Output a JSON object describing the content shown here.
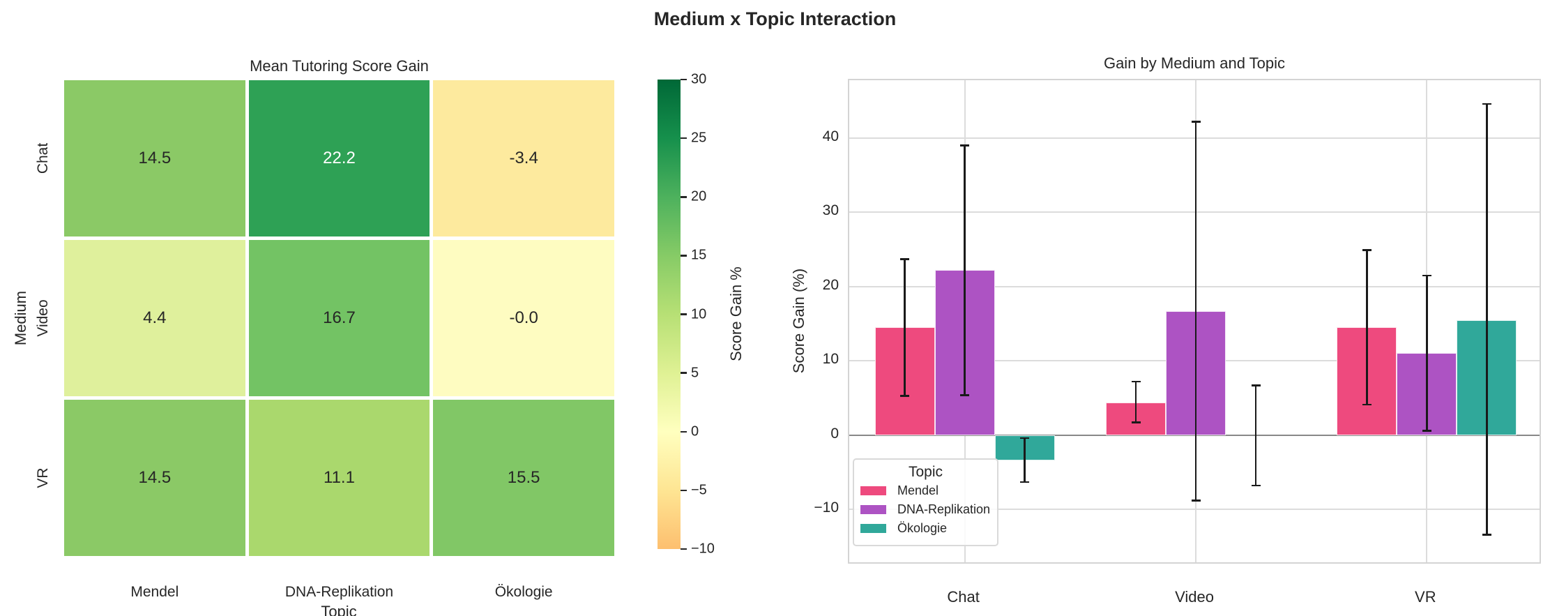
{
  "figure_title": "Medium x Topic Interaction",
  "chart_data": [
    {
      "type": "heatmap",
      "title": "Mean Tutoring Score Gain",
      "xlabel": "Topic",
      "ylabel": "Medium",
      "columns": [
        "Mendel",
        "DNA-Replikation",
        "Ökologie"
      ],
      "rows": [
        "Chat",
        "Video",
        "VR"
      ],
      "values": [
        [
          14.5,
          22.2,
          -3.4
        ],
        [
          4.4,
          16.7,
          -0.0
        ],
        [
          14.5,
          11.1,
          15.5
        ]
      ],
      "cell_labels": [
        [
          "14.5",
          "22.2",
          "-3.4"
        ],
        [
          "4.4",
          "16.7",
          "-0.0"
        ],
        [
          "14.5",
          "11.1",
          "15.5"
        ]
      ],
      "cell_colors": [
        [
          "#8bc966",
          "#2ea155",
          "#fdea9e"
        ],
        [
          "#dff09c",
          "#73c364",
          "#fefcc1"
        ],
        [
          "#8bc966",
          "#aad86d",
          "#81c766"
        ]
      ],
      "cell_text_colors": [
        [
          "#262626",
          "#ffffff",
          "#262626"
        ],
        [
          "#262626",
          "#262626",
          "#262626"
        ],
        [
          "#262626",
          "#262626",
          "#262626"
        ]
      ],
      "colorbar": {
        "label": "Score Gain %",
        "ticks": [
          30,
          25,
          20,
          15,
          10,
          5,
          0,
          -5,
          -10
        ],
        "range": [
          -10,
          30
        ],
        "gradient_top_to_bottom": [
          "#006837",
          "#16904c",
          "#4db15d",
          "#86cb66",
          "#b7e075",
          "#dff194",
          "#ffffbf",
          "#fee593",
          "#fdbf6f"
        ]
      }
    },
    {
      "type": "bar",
      "title": "Gain by Medium and Topic",
      "ylabel": "Score Gain (%)",
      "categories": [
        "Chat",
        "Video",
        "VR"
      ],
      "yticks": [
        40,
        30,
        20,
        10,
        0,
        -10
      ],
      "ylim": [
        -17.5,
        47.8
      ],
      "grid": true,
      "legend": {
        "title": "Topic",
        "position": "lower left"
      },
      "series": [
        {
          "name": "Mendel",
          "color": "#ee4a7e",
          "values": [
            14.5,
            4.4,
            14.5
          ],
          "err_low": [
            5.3,
            1.7,
            4.1
          ],
          "err_high": [
            23.7,
            7.2,
            24.9
          ]
        },
        {
          "name": "DNA-Replikation",
          "color": "#ad53c3",
          "values": [
            22.2,
            16.7,
            11.1
          ],
          "err_low": [
            5.4,
            -8.8,
            0.6
          ],
          "err_high": [
            39.0,
            42.2,
            21.5
          ]
        },
        {
          "name": "Ökologie",
          "color": "#30a89a",
          "values": [
            -3.4,
            -0.0,
            15.5
          ],
          "err_low": [
            -6.3,
            -6.8,
            -13.4
          ],
          "err_high": [
            -0.4,
            6.7,
            44.6
          ]
        }
      ]
    }
  ]
}
